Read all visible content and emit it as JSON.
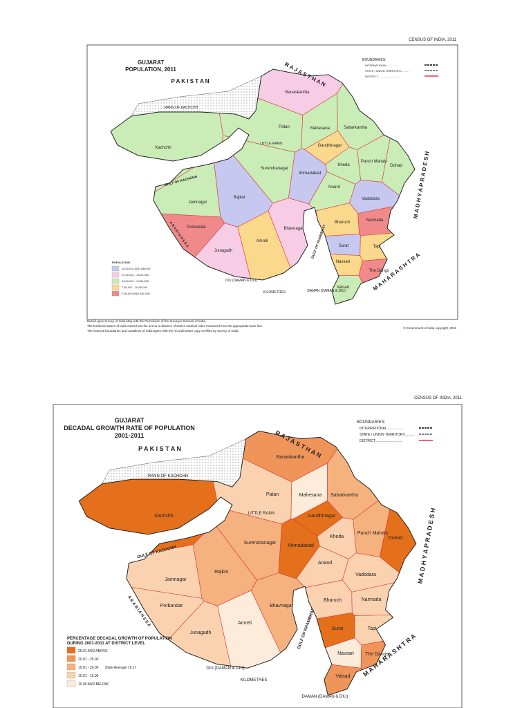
{
  "maps": [
    {
      "census": "CENSUS OF INDIA, 2011",
      "title": [
        "GUJARAT",
        "POPULATION, 2011"
      ],
      "boundaries": {
        "title": "BOUNDARIES:",
        "items": [
          "INTERNATIONAL..................",
          "STATE / UNION TERRITORY..........",
          "DISTRICT............................"
        ]
      },
      "legend": {
        "title": [
          "POPULATION"
        ],
        "items": [
          {
            "label": "34,00,001 AND ABOVE",
            "color": "#c6c8ef"
          },
          {
            "label": "24,50,001 - 34,00,000",
            "color": "#f7cde6"
          },
          {
            "label": "16,00,001 - 24,50,000",
            "color": "#caecb6"
          },
          {
            "label": "7,50,001 - 16,00,000",
            "color": "#fbd98c"
          },
          {
            "label": "7,50,000 AND BELOW",
            "color": "#f08a8a"
          }
        ]
      },
      "places": [
        "P A K I S T A N",
        "R A J A S T H A N",
        "RANN OF KACHCHH",
        "LITTLE RANN",
        "GULF OF KACHCHH",
        "A R A B I A N   S E A",
        "GULF OF KHAMBHAT",
        "M A D H Y A   P R A D E S H",
        "M A H A R A S H T R A",
        "DIU (DAMAN & DIU)",
        "DAMAN (DAMAN & DIU)",
        "KILOMETRES"
      ],
      "districts": [
        {
          "name": "Kachchh",
          "color": "#caecb6"
        },
        {
          "name": "Banaskantha",
          "color": "#f7cde6"
        },
        {
          "name": "Patan",
          "color": "#caecb6"
        },
        {
          "name": "Mahesana",
          "color": "#caecb6"
        },
        {
          "name": "Sabarkantha",
          "color": "#caecb6"
        },
        {
          "name": "Gandhinagar",
          "color": "#fbd98c"
        },
        {
          "name": "Panch Mahals",
          "color": "#caecb6"
        },
        {
          "name": "Dohad",
          "color": "#caecb6"
        },
        {
          "name": "Kheda",
          "color": "#caecb6"
        },
        {
          "name": "Ahmadabad",
          "color": "#c6c8ef"
        },
        {
          "name": "Surendranagar",
          "color": "#caecb6"
        },
        {
          "name": "Anand",
          "color": "#caecb6"
        },
        {
          "name": "Vadodara",
          "color": "#c6c8ef"
        },
        {
          "name": "Rajkot",
          "color": "#c6c8ef"
        },
        {
          "name": "Jamnagar",
          "color": "#caecb6"
        },
        {
          "name": "Porbandar",
          "color": "#f08a8a"
        },
        {
          "name": "Junagadh",
          "color": "#f7cde6"
        },
        {
          "name": "Amreli",
          "color": "#fbd98c"
        },
        {
          "name": "Bhavnagar",
          "color": "#f7cde6"
        },
        {
          "name": "Bharuch",
          "color": "#fbd98c"
        },
        {
          "name": "Narmada",
          "color": "#f08a8a"
        },
        {
          "name": "Surat",
          "color": "#c6c8ef"
        },
        {
          "name": "Tapi",
          "color": "#fbd98c"
        },
        {
          "name": "Navsari",
          "color": "#fbd98c"
        },
        {
          "name": "The Dangs",
          "color": "#f08a8a"
        },
        {
          "name": "Valsad",
          "color": "#caecb6"
        }
      ],
      "notes": [
        "Based upon Survey of India Map with the Permission of the Surveyor General of India.",
        "The territorial waters of India extend into the sea to a distance of twelve nautical miles measured from the appropriate base line.",
        "The external boundaries and coastlines of India agree with the record/master copy certified by Survey of India."
      ],
      "copyright": "© Government of India copyright, 2011"
    },
    {
      "census": "CENSUS OF INDIA, 2011",
      "title": [
        "GUJARAT",
        "DECADAL GROWTH RATE OF POPULATION",
        "2001-2011"
      ],
      "boundaries": {
        "title": "BOUNDARIES:",
        "items": [
          "INTERNATIONAL..................",
          "STATE / UNION TERRITORY..........",
          "DISTRICT............................"
        ]
      },
      "legend": {
        "title": [
          "PERCENTAGE DECADAL GROWTH OF POPULATION",
          "DURING 2001-2011 AT DISTRICT LEVEL"
        ],
        "items": [
          {
            "label": "25.01 AND ABOVE",
            "color": "#e5701b"
          },
          {
            "label": "20.01 - 25.00",
            "color": "#f0955a"
          },
          {
            "label": "15.01 - 20.00",
            "color": "#f5b27f"
          },
          {
            "label": "10.01 - 15.00",
            "color": "#fad2b0"
          },
          {
            "label": "10.00 AND BELOW",
            "color": "#fdecd9"
          }
        ],
        "note": "State Average 19.17"
      },
      "places": [
        "P A K I S T A N",
        "R A J A S T H A N",
        "RANN OF KACHCHH",
        "LITTLE RANN",
        "GULF OF KACHCHH",
        "A R A B I A N   S E A",
        "GULF OF KHAMBHAT",
        "M A D H Y A   P R A D E S H",
        "M A H A R A S H T R A",
        "DIU (DAMAN & DIU)",
        "DAMAN (DAMAN & DIU)",
        "KILOMETRES"
      ],
      "districts": [
        {
          "name": "Kachchh",
          "color": "#e5701b"
        },
        {
          "name": "Banaskantha",
          "color": "#f0955a"
        },
        {
          "name": "Patan",
          "color": "#fad2b0"
        },
        {
          "name": "Mahesana",
          "color": "#fdecd9"
        },
        {
          "name": "Sabarkantha",
          "color": "#f5b27f"
        },
        {
          "name": "Gandhinagar",
          "color": "#e5701b"
        },
        {
          "name": "Panch Mahals",
          "color": "#f5b27f"
        },
        {
          "name": "Dohad",
          "color": "#e5701b"
        },
        {
          "name": "Kheda",
          "color": "#fad2b0"
        },
        {
          "name": "Ahmadabad",
          "color": "#e5701b"
        },
        {
          "name": "Surendranagar",
          "color": "#f5b27f"
        },
        {
          "name": "Anand",
          "color": "#fad2b0"
        },
        {
          "name": "Vadodara",
          "color": "#fad2b0"
        },
        {
          "name": "Rajkot",
          "color": "#f5b27f"
        },
        {
          "name": "Jamnagar",
          "color": "#fad2b0"
        },
        {
          "name": "Porbandar",
          "color": "#fad2b0"
        },
        {
          "name": "Junagadh",
          "color": "#fad2b0"
        },
        {
          "name": "Amreli",
          "color": "#fdecd9"
        },
        {
          "name": "Bhavnagar",
          "color": "#f5b27f"
        },
        {
          "name": "Bharuch",
          "color": "#fad2b0"
        },
        {
          "name": "Narmada",
          "color": "#fad2b0"
        },
        {
          "name": "Surat",
          "color": "#e5701b"
        },
        {
          "name": "Tapi",
          "color": "#fad2b0"
        },
        {
          "name": "Navsari",
          "color": "#fdecd9"
        },
        {
          "name": "The Dangs",
          "color": "#f0955a"
        },
        {
          "name": "Valsad",
          "color": "#f0955a"
        }
      ]
    }
  ]
}
